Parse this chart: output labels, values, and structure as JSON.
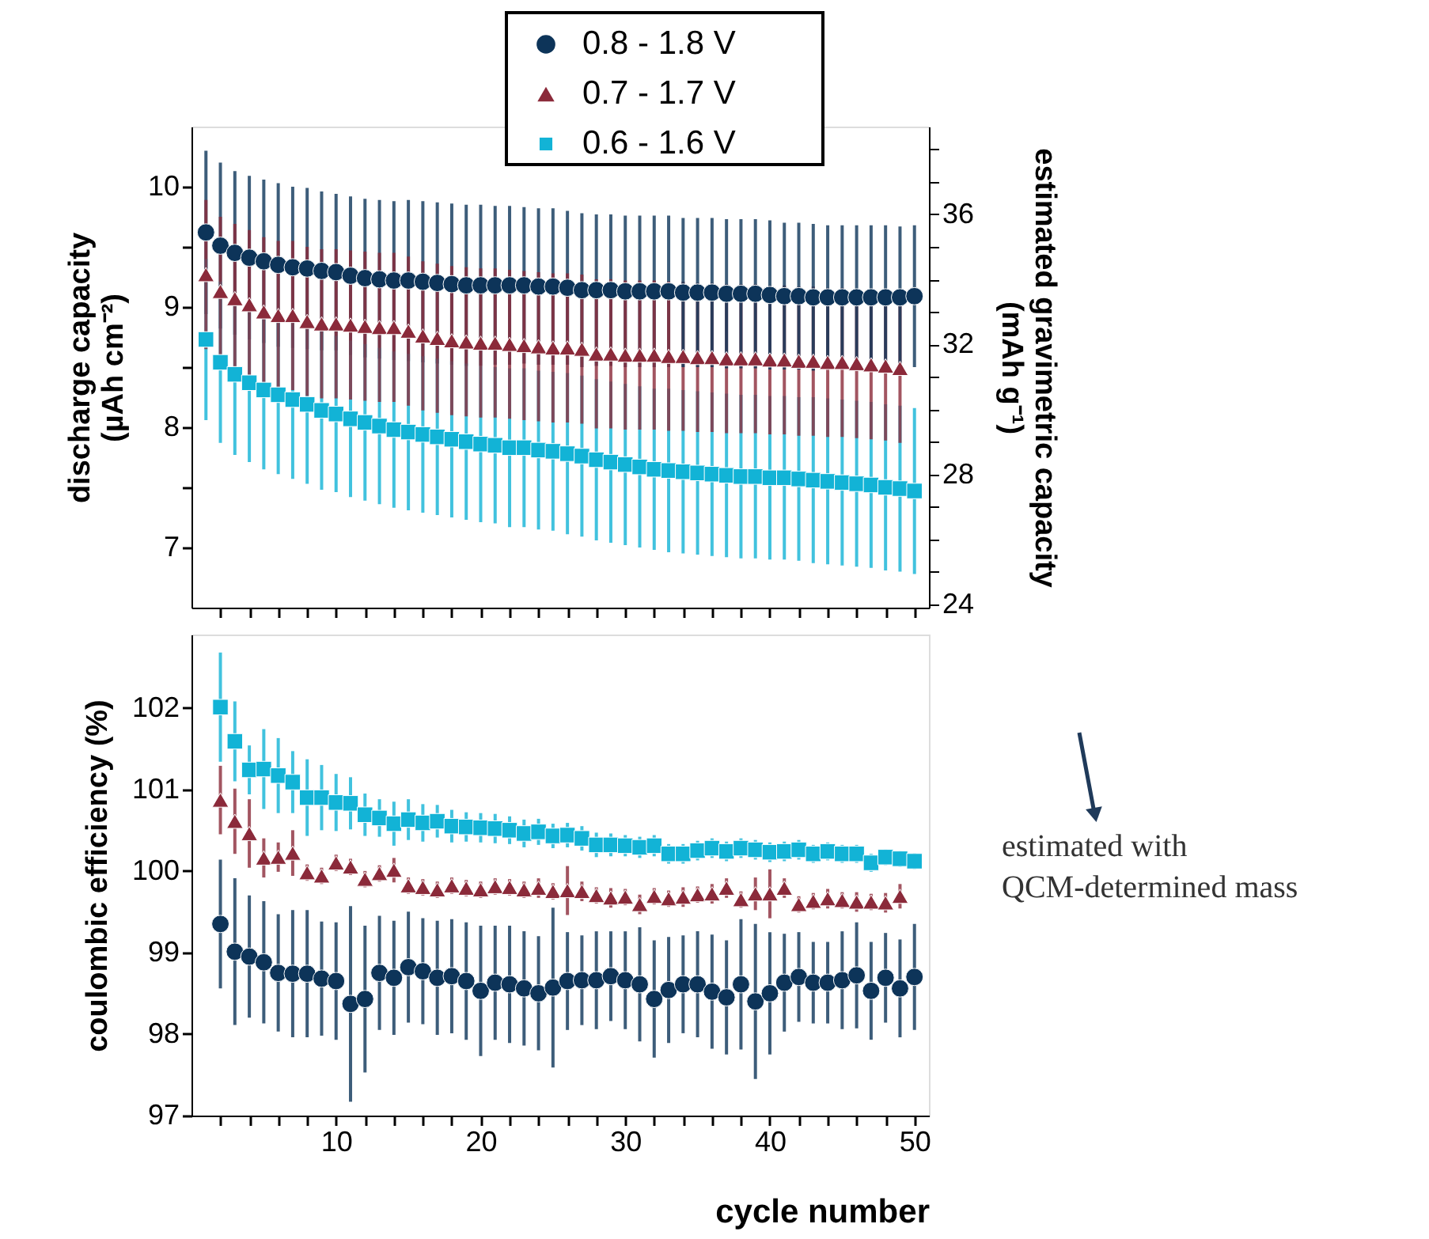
{
  "chart_data": [
    {
      "type": "scatter",
      "ylabel": "discharge capacity\n(µAh cm⁻²)",
      "y2label": "estimated gravimetric capacity\n(mAh g⁻¹)",
      "legend": "top",
      "tick_labels": "y",
      "xlim": [
        0,
        51
      ],
      "xticks": [
        {
          "value": 2,
          "label": null
        },
        {
          "value": 4,
          "label": null
        },
        {
          "value": 6,
          "label": null
        },
        {
          "value": 8,
          "label": null
        },
        {
          "value": 10,
          "label": null
        },
        {
          "value": 12,
          "label": null
        },
        {
          "value": 14,
          "label": null
        },
        {
          "value": 16,
          "label": null
        },
        {
          "value": 18,
          "label": null
        },
        {
          "value": 20,
          "label": null
        },
        {
          "value": 22,
          "label": null
        },
        {
          "value": 24,
          "label": null
        },
        {
          "value": 26,
          "label": null
        },
        {
          "value": 28,
          "label": null
        },
        {
          "value": 30,
          "label": null
        },
        {
          "value": 32,
          "label": null
        },
        {
          "value": 34,
          "label": null
        },
        {
          "value": 36,
          "label": null
        },
        {
          "value": 38,
          "label": null
        },
        {
          "value": 40,
          "label": null
        },
        {
          "value": 42,
          "label": null
        },
        {
          "value": 44,
          "label": null
        },
        {
          "value": 46,
          "label": null
        },
        {
          "value": 48,
          "label": null
        },
        {
          "value": 50,
          "label": null
        }
      ],
      "ylim": [
        6.5,
        10.5
      ],
      "yticks": [
        7,
        {
          "value": 7.5,
          "label": null
        },
        8,
        {
          "value": 8.5,
          "label": null
        },
        9,
        {
          "value": 9.5,
          "label": null
        },
        10
      ],
      "y2lim": [
        23.9,
        38.7
      ],
      "y2ticks": [
        24,
        {
          "value": 25,
          "label": null
        },
        {
          "value": 26,
          "label": null
        },
        {
          "value": 27,
          "label": null
        },
        28,
        {
          "value": 29,
          "label": null
        },
        {
          "value": 30,
          "label": null
        },
        {
          "value": 31,
          "label": null
        },
        32,
        {
          "value": 33,
          "label": null
        },
        {
          "value": 34,
          "label": null
        },
        {
          "value": 35,
          "label": null
        },
        36,
        {
          "value": 37,
          "label": null
        },
        {
          "value": 38,
          "label": null
        }
      ],
      "series": [
        {
          "name": "0.8 - 1.8 V",
          "color": "#0d3459",
          "marker": "circle",
          "x": [
            1,
            2,
            3,
            4,
            5,
            6,
            7,
            8,
            9,
            10,
            11,
            12,
            13,
            14,
            15,
            16,
            17,
            18,
            19,
            20,
            21,
            22,
            23,
            24,
            25,
            26,
            27,
            28,
            29,
            30,
            31,
            32,
            33,
            34,
            35,
            36,
            37,
            38,
            39,
            40,
            41,
            42,
            43,
            44,
            45,
            46,
            47,
            48,
            49,
            50
          ],
          "values": [
            9.62,
            9.51,
            9.45,
            9.41,
            9.38,
            9.35,
            9.33,
            9.32,
            9.3,
            9.29,
            9.26,
            9.24,
            9.23,
            9.22,
            9.22,
            9.21,
            9.2,
            9.19,
            9.18,
            9.18,
            9.18,
            9.18,
            9.18,
            9.17,
            9.17,
            9.16,
            9.14,
            9.14,
            9.14,
            9.13,
            9.13,
            9.13,
            9.13,
            9.12,
            9.12,
            9.12,
            9.11,
            9.11,
            9.11,
            9.1,
            9.09,
            9.09,
            9.08,
            9.08,
            9.08,
            9.08,
            9.08,
            9.08,
            9.08,
            9.09
          ],
          "errors": [
            0.68,
            0.69,
            0.68,
            0.68,
            0.68,
            0.68,
            0.67,
            0.67,
            0.66,
            0.65,
            0.66,
            0.66,
            0.66,
            0.66,
            0.67,
            0.67,
            0.67,
            0.67,
            0.67,
            0.67,
            0.66,
            0.66,
            0.65,
            0.65,
            0.65,
            0.64,
            0.64,
            0.63,
            0.63,
            0.63,
            0.63,
            0.63,
            0.63,
            0.62,
            0.62,
            0.62,
            0.62,
            0.62,
            0.62,
            0.62,
            0.61,
            0.61,
            0.61,
            0.6,
            0.6,
            0.6,
            0.6,
            0.6,
            0.59,
            0.59
          ]
        },
        {
          "name": "0.7 - 1.7 V",
          "color": "#8b2a3a",
          "marker": "triangle",
          "x": [
            1,
            2,
            3,
            4,
            5,
            6,
            7,
            8,
            9,
            10,
            11,
            12,
            13,
            14,
            15,
            16,
            17,
            18,
            19,
            20,
            21,
            22,
            23,
            24,
            25,
            26,
            27,
            28,
            29,
            30,
            31,
            32,
            33,
            34,
            35,
            36,
            37,
            38,
            39,
            40,
            41,
            42,
            43,
            44,
            45,
            46,
            47,
            48,
            49
          ],
          "values": [
            9.27,
            9.13,
            9.07,
            9.02,
            8.96,
            8.93,
            8.93,
            8.88,
            8.86,
            8.86,
            8.85,
            8.84,
            8.83,
            8.83,
            8.8,
            8.76,
            8.74,
            8.72,
            8.71,
            8.7,
            8.7,
            8.69,
            8.68,
            8.67,
            8.66,
            8.66,
            8.65,
            8.61,
            8.61,
            8.6,
            8.6,
            8.6,
            8.59,
            8.59,
            8.58,
            8.58,
            8.57,
            8.57,
            8.57,
            8.56,
            8.56,
            8.55,
            8.55,
            8.54,
            8.54,
            8.53,
            8.52,
            8.51,
            8.49
          ],
          "errors": [
            0.62,
            0.62,
            0.62,
            0.62,
            0.62,
            0.62,
            0.62,
            0.62,
            0.62,
            0.62,
            0.62,
            0.62,
            0.62,
            0.62,
            0.62,
            0.62,
            0.62,
            0.62,
            0.62,
            0.62,
            0.62,
            0.62,
            0.62,
            0.62,
            0.62,
            0.62,
            0.62,
            0.62,
            0.62,
            0.62,
            0.62,
            0.62,
            0.62,
            0.62,
            0.62,
            0.62,
            0.62,
            0.62,
            0.62,
            0.62,
            0.62,
            0.62,
            0.62,
            0.62,
            0.62,
            0.62,
            0.62,
            0.62,
            0.62
          ]
        },
        {
          "name": "0.6 - 1.6 V",
          "color": "#12b3d6",
          "marker": "square",
          "x": [
            1,
            2,
            3,
            4,
            5,
            6,
            7,
            8,
            9,
            10,
            11,
            12,
            13,
            14,
            15,
            16,
            17,
            18,
            19,
            20,
            21,
            22,
            23,
            24,
            25,
            26,
            27,
            28,
            29,
            30,
            31,
            32,
            33,
            34,
            35,
            36,
            37,
            38,
            39,
            40,
            41,
            42,
            43,
            44,
            45,
            46,
            47,
            48,
            49,
            50
          ],
          "values": [
            8.73,
            8.54,
            8.44,
            8.37,
            8.31,
            8.27,
            8.23,
            8.19,
            8.14,
            8.11,
            8.07,
            8.04,
            8.01,
            7.98,
            7.96,
            7.94,
            7.92,
            7.9,
            7.88,
            7.86,
            7.85,
            7.83,
            7.83,
            7.81,
            7.8,
            7.78,
            7.76,
            7.73,
            7.71,
            7.69,
            7.67,
            7.65,
            7.64,
            7.63,
            7.62,
            7.61,
            7.6,
            7.59,
            7.59,
            7.58,
            7.58,
            7.57,
            7.56,
            7.55,
            7.54,
            7.53,
            7.52,
            7.5,
            7.49,
            7.47
          ],
          "errors": [
            0.67,
            0.67,
            0.67,
            0.66,
            0.66,
            0.66,
            0.66,
            0.66,
            0.66,
            0.65,
            0.65,
            0.65,
            0.65,
            0.65,
            0.65,
            0.65,
            0.65,
            0.65,
            0.65,
            0.65,
            0.65,
            0.66,
            0.66,
            0.66,
            0.66,
            0.67,
            0.67,
            0.67,
            0.67,
            0.67,
            0.67,
            0.67,
            0.68,
            0.68,
            0.68,
            0.68,
            0.68,
            0.68,
            0.68,
            0.68,
            0.68,
            0.68,
            0.69,
            0.69,
            0.69,
            0.69,
            0.69,
            0.69,
            0.69,
            0.69
          ]
        }
      ]
    },
    {
      "type": "scatter",
      "xlabel": "cycle number",
      "ylabel": "coulombic efficiency (%)",
      "annotations": [
        "estimated with\nQCM-determined mass"
      ],
      "xlim": [
        0,
        51
      ],
      "xticks": [
        {
          "value": 2,
          "label": null
        },
        {
          "value": 4,
          "label": null
        },
        {
          "value": 6,
          "label": null
        },
        {
          "value": 8,
          "label": null
        },
        10,
        {
          "value": 12,
          "label": null
        },
        {
          "value": 14,
          "label": null
        },
        {
          "value": 16,
          "label": null
        },
        {
          "value": 18,
          "label": null
        },
        20,
        {
          "value": 22,
          "label": null
        },
        {
          "value": 24,
          "label": null
        },
        {
          "value": 26,
          "label": null
        },
        {
          "value": 28,
          "label": null
        },
        30,
        {
          "value": 32,
          "label": null
        },
        {
          "value": 34,
          "label": null
        },
        {
          "value": 36,
          "label": null
        },
        {
          "value": 38,
          "label": null
        },
        40,
        {
          "value": 42,
          "label": null
        },
        {
          "value": 44,
          "label": null
        },
        {
          "value": 46,
          "label": null
        },
        {
          "value": 48,
          "label": null
        },
        50
      ],
      "ylim": [
        97,
        102.9
      ],
      "yticks": [
        97,
        98,
        99,
        100,
        101,
        102
      ],
      "series": [
        {
          "color": "#0d3459",
          "marker": "circle",
          "x": [
            2,
            3,
            4,
            5,
            6,
            7,
            8,
            9,
            10,
            11,
            12,
            13,
            14,
            15,
            16,
            17,
            18,
            19,
            20,
            21,
            22,
            23,
            24,
            25,
            26,
            27,
            28,
            29,
            30,
            31,
            32,
            33,
            34,
            35,
            36,
            37,
            38,
            39,
            40,
            41,
            42,
            43,
            44,
            45,
            46,
            47,
            48,
            49,
            50
          ],
          "values": [
            99.35,
            99.01,
            98.95,
            98.88,
            98.75,
            98.74,
            98.74,
            98.68,
            98.65,
            98.37,
            98.43,
            98.75,
            98.69,
            98.82,
            98.77,
            98.69,
            98.71,
            98.65,
            98.53,
            98.63,
            98.61,
            98.56,
            98.5,
            98.57,
            98.65,
            98.66,
            98.66,
            98.71,
            98.66,
            98.61,
            98.43,
            98.54,
            98.61,
            98.61,
            98.52,
            98.45,
            98.61,
            98.4,
            98.5,
            98.63,
            98.7,
            98.63,
            98.63,
            98.66,
            98.72,
            98.53,
            98.69,
            98.56,
            98.7
          ],
          "errors": [
            0.79,
            0.9,
            0.75,
            0.75,
            0.72,
            0.78,
            0.78,
            0.7,
            0.72,
            1.2,
            0.9,
            0.7,
            0.7,
            0.68,
            0.65,
            0.7,
            0.7,
            0.72,
            0.8,
            0.7,
            0.72,
            0.7,
            0.7,
            0.98,
            0.6,
            0.55,
            0.6,
            0.55,
            0.6,
            0.7,
            0.72,
            0.65,
            0.6,
            0.65,
            0.7,
            0.7,
            0.8,
            0.95,
            0.75,
            0.6,
            0.55,
            0.5,
            0.5,
            0.6,
            0.65,
            0.6,
            0.55,
            0.6,
            0.65
          ]
        },
        {
          "color": "#8b2a3a",
          "marker": "triangle",
          "x": [
            2,
            3,
            4,
            5,
            6,
            7,
            8,
            9,
            10,
            11,
            12,
            13,
            14,
            15,
            16,
            17,
            18,
            19,
            20,
            21,
            22,
            23,
            24,
            25,
            26,
            27,
            28,
            29,
            30,
            31,
            32,
            33,
            34,
            35,
            36,
            37,
            38,
            39,
            40,
            41,
            42,
            43,
            44,
            45,
            46,
            47,
            48,
            49
          ],
          "values": [
            100.87,
            100.61,
            100.46,
            100.16,
            100.17,
            100.22,
            99.98,
            99.94,
            100.1,
            100.05,
            99.9,
            99.97,
            100.01,
            99.82,
            99.8,
            99.77,
            99.82,
            99.79,
            99.77,
            99.81,
            99.8,
            99.77,
            99.79,
            99.75,
            99.76,
            99.75,
            99.7,
            99.67,
            99.68,
            99.59,
            99.69,
            99.66,
            99.68,
            99.71,
            99.72,
            99.79,
            99.65,
            99.72,
            99.72,
            99.79,
            99.59,
            99.63,
            99.66,
            99.64,
            99.62,
            99.62,
            99.61,
            99.69
          ],
          "errors": [
            0.42,
            0.4,
            0.42,
            0.24,
            0.18,
            0.28,
            0.1,
            0.1,
            0.1,
            0.1,
            0.1,
            0.1,
            0.15,
            0.1,
            0.1,
            0.1,
            0.1,
            0.1,
            0.1,
            0.1,
            0.1,
            0.1,
            0.12,
            0.1,
            0.3,
            0.12,
            0.1,
            0.12,
            0.1,
            0.12,
            0.1,
            0.1,
            0.12,
            0.1,
            0.12,
            0.12,
            0.1,
            0.2,
            0.3,
            0.12,
            0.1,
            0.1,
            0.12,
            0.1,
            0.12,
            0.1,
            0.12,
            0.15
          ]
        },
        {
          "color": "#12b3d6",
          "marker": "square",
          "x": [
            2,
            3,
            4,
            5,
            6,
            7,
            8,
            9,
            10,
            11,
            12,
            13,
            14,
            15,
            16,
            17,
            18,
            19,
            20,
            21,
            22,
            23,
            24,
            25,
            26,
            27,
            28,
            29,
            30,
            31,
            32,
            33,
            34,
            35,
            36,
            37,
            38,
            39,
            40,
            41,
            42,
            43,
            44,
            45,
            46,
            47,
            48,
            49,
            50
          ],
          "values": [
            102.01,
            101.59,
            101.24,
            101.25,
            101.17,
            101.09,
            100.9,
            100.9,
            100.84,
            100.83,
            100.69,
            100.65,
            100.58,
            100.63,
            100.59,
            100.61,
            100.55,
            100.54,
            100.53,
            100.52,
            100.5,
            100.46,
            100.48,
            100.43,
            100.44,
            100.4,
            100.32,
            100.32,
            100.31,
            100.29,
            100.31,
            100.21,
            100.21,
            100.25,
            100.28,
            100.24,
            100.28,
            100.26,
            100.23,
            100.24,
            100.26,
            100.21,
            100.24,
            100.21,
            100.21,
            100.1,
            100.17,
            100.15,
            100.12
          ],
          "errors": [
            0.67,
            0.49,
            0.3,
            0.49,
            0.46,
            0.38,
            0.47,
            0.4,
            0.35,
            0.32,
            0.26,
            0.23,
            0.27,
            0.25,
            0.23,
            0.2,
            0.2,
            0.18,
            0.18,
            0.18,
            0.17,
            0.17,
            0.16,
            0.15,
            0.15,
            0.15,
            0.15,
            0.14,
            0.13,
            0.13,
            0.13,
            0.12,
            0.12,
            0.12,
            0.12,
            0.12,
            0.12,
            0.12,
            0.12,
            0.12,
            0.12,
            0.11,
            0.11,
            0.11,
            0.11,
            0.11,
            0.1,
            0.1,
            0.1
          ]
        }
      ]
    }
  ]
}
